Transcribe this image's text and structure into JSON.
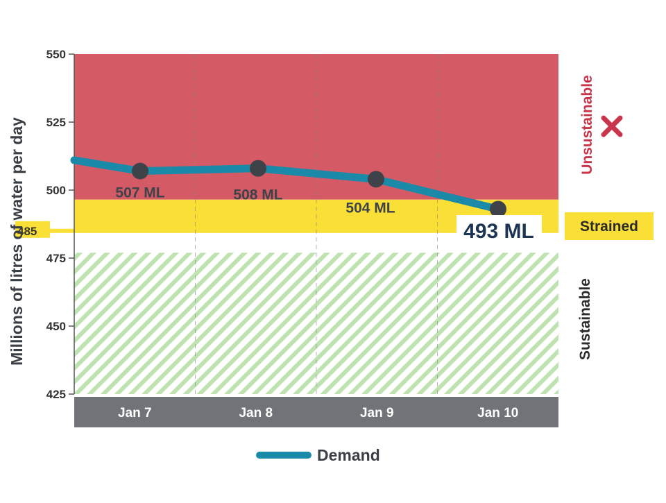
{
  "chart_data": {
    "type": "line",
    "title": "",
    "xlabel": "",
    "ylabel": "Millions of litres of water per day",
    "categories": [
      "Jan 7",
      "Jan 8",
      "Jan 9",
      "Jan 10"
    ],
    "series": [
      {
        "name": "Demand",
        "values": [
          507,
          508,
          504,
          493
        ],
        "line_start_value": 511,
        "color": "#1a8aa8"
      }
    ],
    "data_labels": [
      "507 ML",
      "508 ML",
      "504 ML",
      "493 ML"
    ],
    "ylim": [
      425,
      550
    ],
    "yticks": [
      425,
      450,
      475,
      500,
      525,
      550
    ],
    "threshold": {
      "value": 485,
      "label": "485"
    },
    "zones": [
      {
        "name": "Unsustainable",
        "from": 496.5,
        "to": 550,
        "color": "#d45a66",
        "text_color": "#c9354a"
      },
      {
        "name": "Strained",
        "from": 485,
        "to": 496.5,
        "color": "#f9df36",
        "text_color": "#2b2b2b"
      },
      {
        "name": "Sustainable",
        "from": 425,
        "to": 477,
        "color": "#bfe3b0",
        "text_color": "#2b2b2b"
      }
    ],
    "legend": {
      "position": "bottom-center",
      "entries": [
        "Demand"
      ]
    },
    "marker_color": "#3e4349",
    "axis_bar_color": "#707377"
  }
}
